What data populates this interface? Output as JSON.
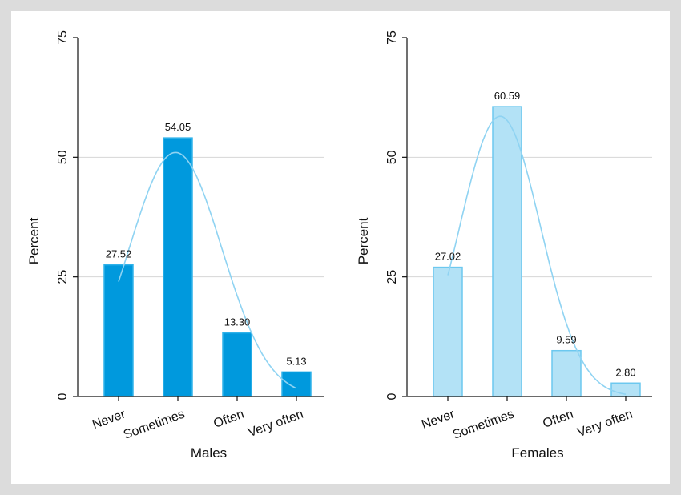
{
  "chart_data": [
    {
      "type": "bar",
      "xlabel": "Males",
      "ylabel": "Percent",
      "categories": [
        "Never",
        "Sometimes",
        "Often",
        "Very often"
      ],
      "values": [
        27.52,
        54.05,
        13.3,
        5.13
      ],
      "data_labels": [
        "27.52",
        "54.05",
        "13.30",
        "5.13"
      ],
      "ylim": [
        0,
        75
      ],
      "yticks": [
        "0",
        "25",
        "50",
        "75"
      ],
      "grid": true,
      "overlay": "normal density curve",
      "bar_color": "#0099dd",
      "bar_edge": "#2fb2ea",
      "curve_color": "#8fd3f2"
    },
    {
      "type": "bar",
      "xlabel": "Females",
      "ylabel": "Percent",
      "categories": [
        "Never",
        "Sometimes",
        "Often",
        "Very often"
      ],
      "values": [
        27.02,
        60.59,
        9.59,
        2.8
      ],
      "data_labels": [
        "27.02",
        "60.59",
        "9.59",
        "2.80"
      ],
      "ylim": [
        0,
        75
      ],
      "yticks": [
        "0",
        "25",
        "50",
        "75"
      ],
      "grid": true,
      "overlay": "normal density curve",
      "bar_color": "#b3e2f6",
      "bar_edge": "#6cc8ef",
      "curve_color": "#8fd3f2"
    }
  ]
}
